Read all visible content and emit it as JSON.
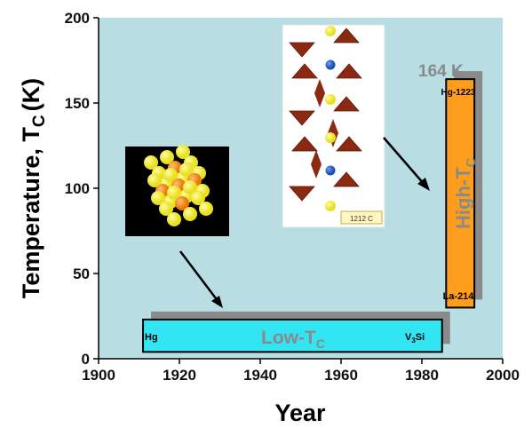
{
  "chart_data": {
    "type": "bar",
    "orientation": "floating-range",
    "xlabel": "Year",
    "ylabel_main": "Temperature, T",
    "ylabel_sub": "C",
    "ylabel_unit": "(K)",
    "xlim": [
      1900,
      2000
    ],
    "ylim": [
      0,
      200
    ],
    "xticks": [
      1900,
      1920,
      1940,
      1960,
      1980,
      2000
    ],
    "yticks": [
      0,
      50,
      100,
      150,
      200
    ],
    "grid": false,
    "plot_background": "#b8dde3",
    "bars": [
      {
        "name_main": "Low-T",
        "name_sub": "C",
        "x_start": 1911,
        "x_end": 1985,
        "y_low": 4,
        "y_high": 23,
        "color": "#33e5f2",
        "start_label": "Hg",
        "end_label_main": "V",
        "end_label_sub": "3",
        "end_label_rest": "Si"
      },
      {
        "name_main": "High-T",
        "name_sub": "C",
        "x_start": 1986,
        "x_end": 1993,
        "y_low": 30,
        "y_high": 164,
        "color": "#ff9d1c",
        "top_label": "Hg-1223",
        "bottom_label": "La-214"
      }
    ],
    "annotations": {
      "max_tc": "164 K",
      "crystal_caption": "1212 C"
    }
  },
  "colors": {
    "shadow": "#8a8a8a",
    "atom_yellow": "#e8e020",
    "atom_orange": "#e8780a",
    "octahedron": "#8b2a10",
    "atom_blue": "#1a4fb0"
  }
}
